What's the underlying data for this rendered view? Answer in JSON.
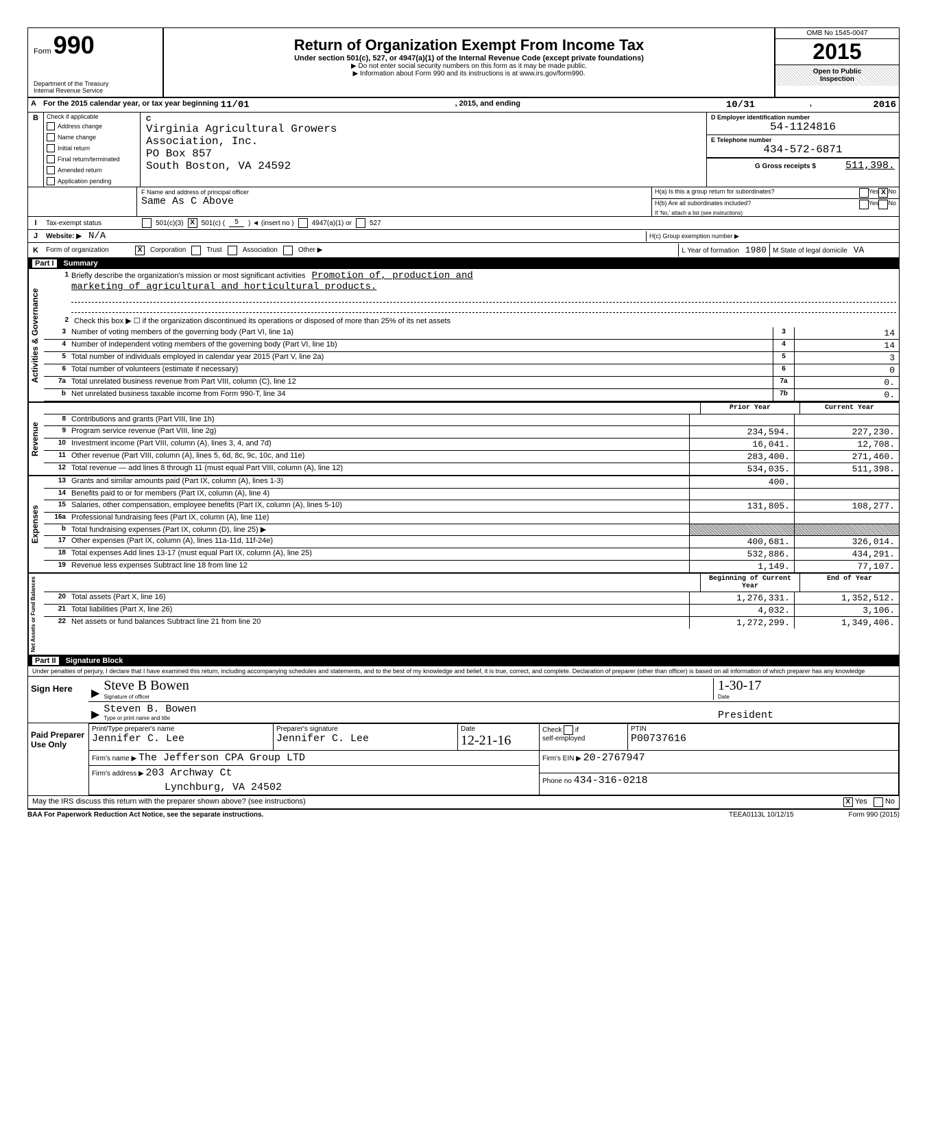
{
  "header": {
    "form_label": "Form",
    "form_number": "990",
    "dept": "Department of the Treasury",
    "irs": "Internal Revenue Service",
    "title": "Return of Organization Exempt From Income Tax",
    "subtitle": "Under section 501(c), 527, or 4947(a)(1) of the Internal Revenue Code (except private foundations)",
    "note1": "▶ Do not enter social security numbers on this form as it may be made public.",
    "note2": "▶ Information about Form 990 and its instructions is at www.irs.gov/form990.",
    "omb": "OMB No 1545-0047",
    "year": "2015",
    "inspection1": "Open to Public",
    "inspection2": "Inspection"
  },
  "rowA": {
    "text_pre": "For the 2015 calendar year, or tax year beginning",
    "begin": "11/01",
    "mid": ", 2015, and ending",
    "end": "10/31",
    "post": ",",
    "year_end": "2016"
  },
  "sectionB": {
    "label": "Check if applicable",
    "items": [
      "Address change",
      "Name change",
      "Initial return",
      "Final return/terminated",
      "Amended return",
      "Application pending"
    ],
    "c_label": "C",
    "org_name": "Virginia Agricultural Growers",
    "org_name2": "Association, Inc.",
    "addr1": "PO Box 857",
    "addr2": "South Boston, VA 24592",
    "d_label": "D Employer identification number",
    "ein": "54-1124816",
    "e_label": "E Telephone number",
    "phone": "434-572-6871",
    "g_label": "G Gross receipts $",
    "gross": "511,398.",
    "f_label": "F Name and address of principal officer",
    "f_value": "Same As C Above",
    "ha_label": "H(a) Is this a group return for subordinates?",
    "hb_label": "H(b) Are all subordinates included?",
    "hb_note": "If 'No,' attach a list (see instructions)",
    "hc_label": "H(c) Group exemption number ▶",
    "yes": "Yes",
    "no": "No"
  },
  "rowI": {
    "label": "Tax-exempt status",
    "opts": [
      "501(c)(3)",
      "501(c) (",
      "5",
      ") ◄ (insert no )",
      "4947(a)(1) or",
      "527"
    ],
    "checked_idx": 1
  },
  "rowJ": {
    "label": "Website: ▶",
    "value": "N/A"
  },
  "rowK": {
    "label": "Form of organization",
    "opts": [
      "Corporation",
      "Trust",
      "Association",
      "Other ▶"
    ],
    "l_label": "L Year of formation",
    "l_value": "1980",
    "m_label": "M State of legal domicile",
    "m_value": "VA"
  },
  "part1": {
    "label": "Part I",
    "title": "Summary",
    "line1_pre": "Briefly describe the organization's mission or most significant activities",
    "mission1": "Promotion of, production and",
    "mission2": "marketing of agricultural and horticultural products.",
    "line2": "Check this box ▶ ☐ if the organization discontinued its operations or disposed of more than 25% of its net assets",
    "gov_lines": [
      {
        "n": "3",
        "d": "Number of voting members of the governing body (Part VI, line 1a)",
        "b": "3",
        "v": "14"
      },
      {
        "n": "4",
        "d": "Number of independent voting members of the governing body (Part VI, line 1b)",
        "b": "4",
        "v": "14"
      },
      {
        "n": "5",
        "d": "Total number of individuals employed in calendar year 2015 (Part V, line 2a)",
        "b": "5",
        "v": "3"
      },
      {
        "n": "6",
        "d": "Total number of volunteers (estimate if necessary)",
        "b": "6",
        "v": "0"
      },
      {
        "n": "7a",
        "d": "Total unrelated business revenue from Part VIII, column (C), line 12",
        "b": "7a",
        "v": "0."
      },
      {
        "n": "b",
        "d": "Net unrelated business taxable income from Form 990-T, line 34",
        "b": "7b",
        "v": "0."
      }
    ],
    "col_prior": "Prior Year",
    "col_current": "Current Year",
    "rev_lines": [
      {
        "n": "8",
        "d": "Contributions and grants (Part VIII, line 1h)",
        "p": "",
        "c": ""
      },
      {
        "n": "9",
        "d": "Program service revenue (Part VIII, line 2g)",
        "p": "234,594.",
        "c": "227,230."
      },
      {
        "n": "10",
        "d": "Investment income (Part VIII, column (A), lines 3, 4, and 7d)",
        "p": "16,041.",
        "c": "12,708."
      },
      {
        "n": "11",
        "d": "Other revenue (Part VIII, column (A), lines 5, 6d, 8c, 9c, 10c, and 11e)",
        "p": "283,400.",
        "c": "271,460."
      },
      {
        "n": "12",
        "d": "Total revenue — add lines 8 through 11 (must equal Part VIII, column (A), line 12)",
        "p": "534,035.",
        "c": "511,398."
      }
    ],
    "exp_lines": [
      {
        "n": "13",
        "d": "Grants and similar amounts paid (Part IX, column (A), lines 1-3)",
        "p": "400.",
        "c": ""
      },
      {
        "n": "14",
        "d": "Benefits paid to or for members (Part IX, column (A), line 4)",
        "p": "",
        "c": ""
      },
      {
        "n": "15",
        "d": "Salaries, other compensation, employee benefits (Part IX, column (A), lines 5-10)",
        "p": "131,805.",
        "c": "108,277."
      },
      {
        "n": "16a",
        "d": "Professional fundraising fees (Part IX, column (A), line 11e)",
        "p": "",
        "c": ""
      },
      {
        "n": "b",
        "d": "Total fundraising expenses (Part IX, column (D), line 25) ▶",
        "p": "shaded",
        "c": "shaded"
      },
      {
        "n": "17",
        "d": "Other expenses (Part IX, column (A), lines 11a-11d, 11f-24e)",
        "p": "400,681.",
        "c": "326,014."
      },
      {
        "n": "18",
        "d": "Total expenses Add lines 13-17 (must equal Part IX, column (A), line 25)",
        "p": "532,886.",
        "c": "434,291."
      },
      {
        "n": "19",
        "d": "Revenue less expenses Subtract line 18 from line 12",
        "p": "1,149.",
        "c": "77,107."
      }
    ],
    "col_begin": "Beginning of Current Year",
    "col_end": "End of Year",
    "net_lines": [
      {
        "n": "20",
        "d": "Total assets (Part X, line 16)",
        "p": "1,276,331.",
        "c": "1,352,512."
      },
      {
        "n": "21",
        "d": "Total liabilities (Part X, line 26)",
        "p": "4,032.",
        "c": "3,106."
      },
      {
        "n": "22",
        "d": "Net assets or fund balances Subtract line 21 from line 20",
        "p": "1,272,299.",
        "c": "1,349,406."
      }
    ],
    "vert_gov": "Activities & Governance",
    "vert_rev": "Revenue",
    "vert_exp": "Expenses",
    "vert_net": "Net Assets or Fund Balances"
  },
  "part2": {
    "label": "Part II",
    "title": "Signature Block",
    "perjury": "Under penalties of perjury, I declare that I have examined this return, including accompanying schedules and statements, and to the best of my knowledge and belief, it is true, correct, and complete. Declaration of preparer (other than officer) is based on all information of which preparer has any knowledge",
    "sign_here": "Sign Here",
    "sig_officer": "Signature of officer",
    "sig_date_val": "1-30-17",
    "date_label": "Date",
    "officer_name": "Steven B. Bowen",
    "officer_title": "President",
    "type_name": "Type or print name and title",
    "paid": "Paid Preparer Use Only",
    "prep_name_label": "Print/Type preparer's name",
    "prep_name": "Jennifer C. Lee",
    "prep_sig_label": "Preparer's signature",
    "prep_sig": "Jennifer C. Lee",
    "prep_date": "12-21-16",
    "check_label": "Check",
    "if_label": "if",
    "self_emp": "self-employed",
    "ptin_label": "PTIN",
    "ptin": "P00737616",
    "firm_name_label": "Firm's name ▶",
    "firm_name": "The Jefferson CPA Group LTD",
    "firm_addr_label": "Firm's address ▶",
    "firm_addr1": "203 Archway Ct",
    "firm_addr2": "Lynchburg, VA 24502",
    "firm_ein_label": "Firm's EIN ▶",
    "firm_ein": "20-2767947",
    "firm_phone_label": "Phone no",
    "firm_phone": "434-316-0218",
    "discuss": "May the IRS discuss this return with the preparer shown above? (see instructions)",
    "baa": "BAA For Paperwork Reduction Act Notice, see the separate instructions.",
    "teea": "TEEA0113L 10/12/15",
    "form_foot": "Form 990 (2015)"
  }
}
